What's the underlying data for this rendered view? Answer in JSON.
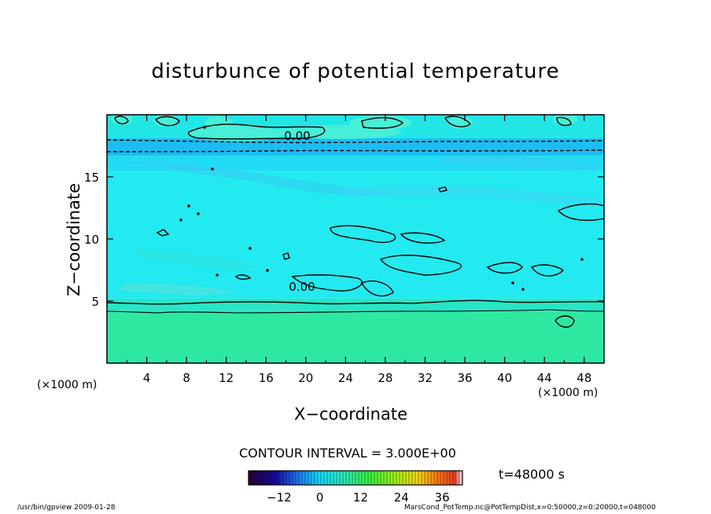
{
  "chart_data": {
    "type": "heatmap",
    "title": "disturbunce of potential temperature",
    "xlabel": "X−coordinate",
    "ylabel": "Z−coordinate",
    "x_unit": "(×1000 m)",
    "xlim": [
      0,
      50
    ],
    "ylim": [
      0,
      20
    ],
    "x_ticks": [
      4,
      8,
      12,
      16,
      20,
      24,
      28,
      32,
      36,
      40,
      44,
      48
    ],
    "y_ticks": [
      5,
      10,
      15
    ],
    "contour_labels": [
      "0.00",
      "0.00"
    ],
    "contour_interval": "CONTOUR INTERVAL = 3.000E+00",
    "colorbar": {
      "ticks": [
        "−12",
        "0",
        "12",
        "24",
        "36"
      ],
      "tick_values": [
        -12,
        0,
        12,
        24,
        36
      ],
      "range": [
        -21,
        42
      ]
    },
    "bands": [
      {
        "z_range": [
          0,
          4.2
        ],
        "value": 5.5,
        "color": "#2ee8a2"
      },
      {
        "z_range": [
          4.2,
          5.2
        ],
        "value": 3.5,
        "color": "#27e6c6"
      },
      {
        "z_range": [
          5.2,
          15.5
        ],
        "value": 1,
        "color": "#22eaf0"
      },
      {
        "z_range": [
          15.5,
          16.7
        ],
        "value": -2,
        "color": "#22dbf5"
      },
      {
        "z_range": [
          16.7,
          18.1
        ],
        "value": -4,
        "color": "#1cbdf3"
      },
      {
        "z_range": [
          18.1,
          20
        ],
        "value": 0.5,
        "color": "#22e6e6"
      }
    ],
    "time": "t=48000 s",
    "source": "/usr/bin/gpview   2009-01-28",
    "file_info": "MarsCond_PotTemp.nc@PotTempDist,x=0:50000,z=0:20000,t=048000"
  }
}
